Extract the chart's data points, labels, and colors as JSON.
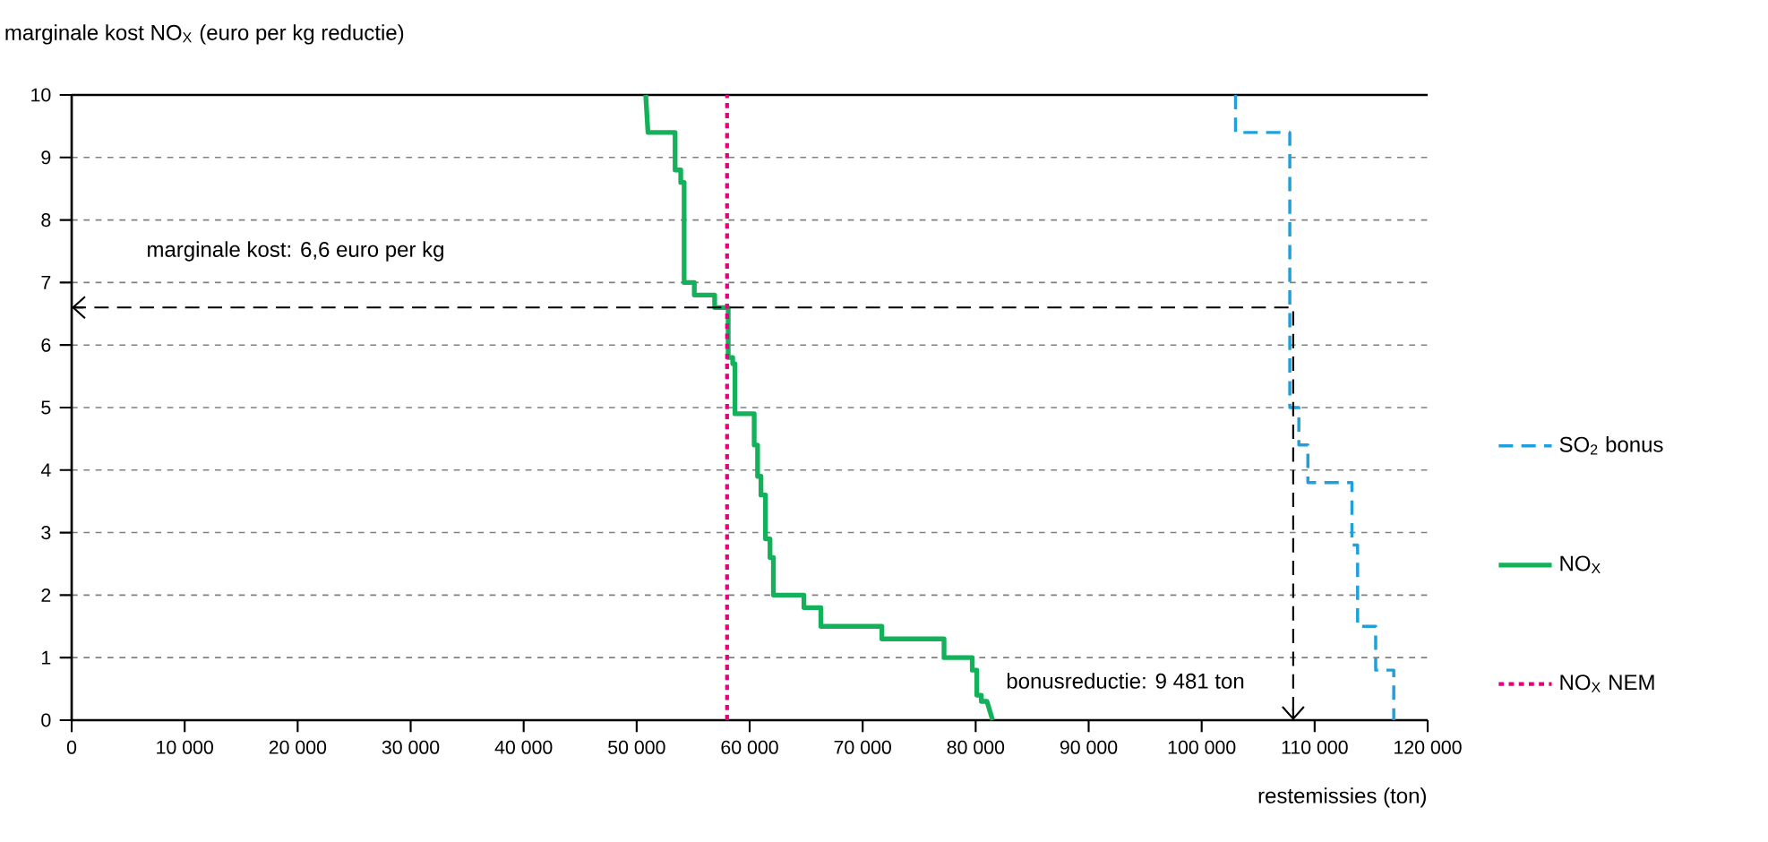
{
  "chart_data": {
    "type": "line",
    "ylabel": "marginale kost NO$_{X}$ (euro per kg reductie)",
    "xlabel": "restemissies (ton)",
    "xlim": [
      0,
      120000
    ],
    "ylim": [
      0,
      10
    ],
    "xticks": [
      0,
      {
        "value": 10000,
        "label": "10 000"
      },
      {
        "value": 20000,
        "label": "20 000"
      },
      {
        "value": 30000,
        "label": "30 000"
      },
      {
        "value": 40000,
        "label": "40 000"
      },
      {
        "value": 50000,
        "label": "50 000"
      },
      {
        "value": 60000,
        "label": "60 000"
      },
      {
        "value": 70000,
        "label": "70 000"
      },
      {
        "value": 80000,
        "label": "80 000"
      },
      {
        "value": 90000,
        "label": "90 000"
      },
      {
        "value": 100000,
        "label": "100 000"
      },
      {
        "value": 110000,
        "label": "110 000"
      },
      {
        "value": 120000,
        "label": "120 000"
      }
    ],
    "yticks": [
      0,
      1,
      2,
      3,
      4,
      5,
      6,
      7,
      8,
      9,
      10
    ],
    "grid": "y",
    "legend": "right",
    "series": [
      {
        "name": "SO$_{2}$ bonus",
        "color": "#1fa0dc",
        "line_style": "dashed",
        "x": [
          103000,
          103000,
          107800,
          107800,
          108600,
          108600,
          109400,
          109400,
          113300,
          113300,
          113800,
          113800,
          115400,
          115400,
          117000,
          117000
        ],
        "values": [
          10,
          9.4,
          9.4,
          5.0,
          5.0,
          4.4,
          4.4,
          3.8,
          3.8,
          2.8,
          2.8,
          1.5,
          1.5,
          0.8,
          0.8,
          0
        ]
      },
      {
        "name": "NO$_{X}$",
        "color": "#13b15a",
        "line_style": "solid",
        "x": [
          50800,
          51000,
          53400,
          53400,
          53900,
          53900,
          54200,
          54200,
          55100,
          55100,
          56900,
          56900,
          58100,
          58100,
          58500,
          58500,
          58700,
          58700,
          60400,
          60400,
          60700,
          60700,
          61000,
          61000,
          61400,
          61400,
          61800,
          61800,
          62100,
          62100,
          64800,
          64800,
          66300,
          66300,
          71700,
          71700,
          77200,
          77200,
          79700,
          79700,
          80100,
          80100,
          80500,
          80500,
          81000,
          81500
        ],
        "values": [
          10,
          9.4,
          9.4,
          8.8,
          8.8,
          8.6,
          8.6,
          7.0,
          7.0,
          6.8,
          6.8,
          6.6,
          6.6,
          5.8,
          5.8,
          5.7,
          5.7,
          4.9,
          4.9,
          4.4,
          4.4,
          3.9,
          3.9,
          3.6,
          3.6,
          2.9,
          2.9,
          2.6,
          2.6,
          2.0,
          2.0,
          1.8,
          1.8,
          1.5,
          1.5,
          1.3,
          1.3,
          1.0,
          1.0,
          0.8,
          0.8,
          0.4,
          0.4,
          0.3,
          0.3,
          0
        ]
      },
      {
        "name": "NO$_{X}$ NEM",
        "color": "#e6007e",
        "line_style": "dotted",
        "x": [
          58000,
          58000
        ],
        "values": [
          0,
          10
        ]
      },
      {
        "color": "#000000",
        "line_style": "dashed",
        "x": [
          0,
          108100,
          108100
        ],
        "values": [
          6.6,
          6.6,
          0
        ]
      }
    ],
    "annotations": [
      "marginale kost: 6,6 euro per kg",
      "bonusreductie: 9 481 ton"
    ]
  }
}
